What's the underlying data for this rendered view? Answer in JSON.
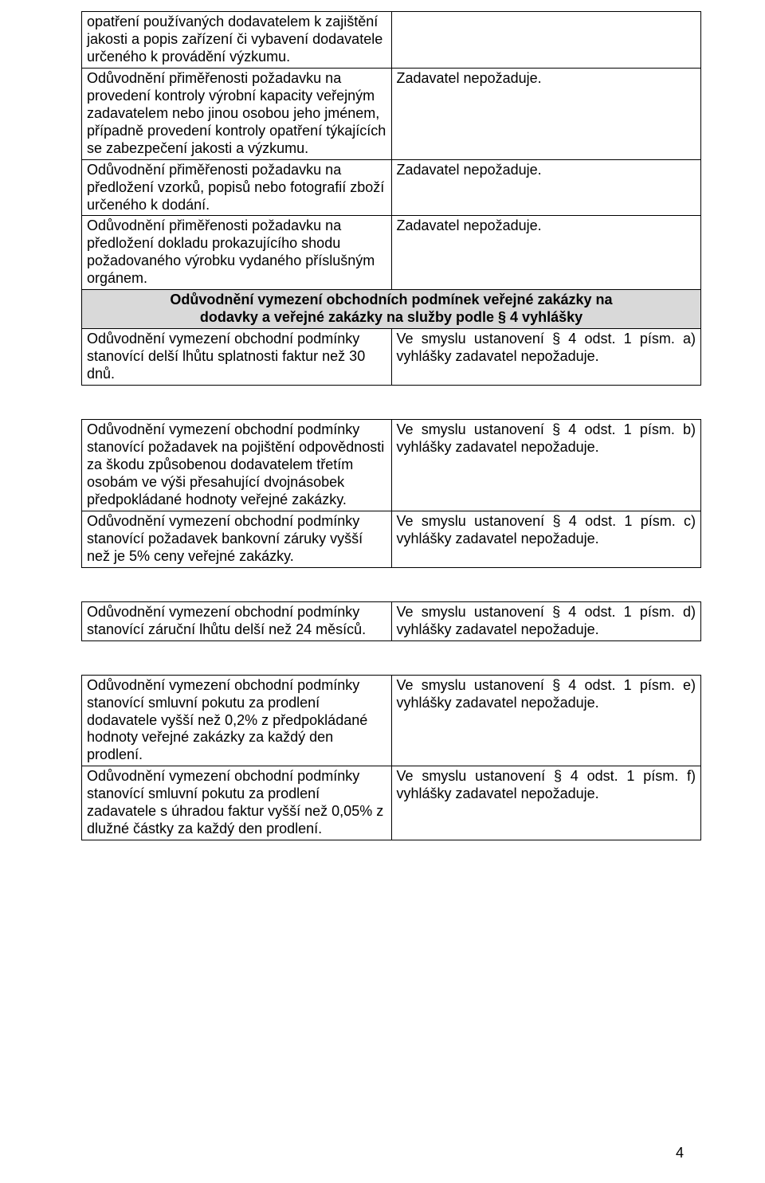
{
  "table1": {
    "rows": [
      {
        "left": "opatření používaných dodavatelem k zajištění jakosti a popis zařízení či vybavení dodavatele určeného k provádění výzkumu.",
        "right": ""
      },
      {
        "left": "Odůvodnění přiměřenosti požadavku na provedení kontroly výrobní kapacity veřejným zadavatelem nebo jinou osobou jeho jménem, případně provedení kontroly opatření týkajících se zabezpečení jakosti a výzkumu.",
        "right": "Zadavatel nepožaduje."
      },
      {
        "left": "Odůvodnění přiměřenosti požadavku na předložení vzorků, popisů nebo fotografií zboží určeného k dodání.",
        "right": "Zadavatel nepožaduje."
      },
      {
        "left": "Odůvodnění přiměřenosti požadavku na předložení dokladu prokazujícího shodu požadovaného výrobku vydaného příslušným orgánem.",
        "right": "Zadavatel nepožaduje."
      }
    ],
    "sectionHeader": "Odůvodnění vymezení obchodních podmínek veřejné zakázky na dodavky a veřejné zakázky na služby podle § 4 vyhlášky",
    "row5": {
      "left": "Odůvodnění vymezení obchodní podmínky stanovící delší lhůtu splatnosti faktur než 30 dnů.",
      "right": "Ve smyslu ustanovení § 4 odst. 1 písm. a) vyhlášky zadavatel nepožaduje."
    }
  },
  "table2": {
    "rows": [
      {
        "left": "Odůvodnění vymezení obchodní podmínky stanovící požadavek na pojištění odpovědnosti za škodu způsobenou dodavatelem třetím osobám ve výši přesahující dvojnásobek předpokládané hodnoty veřejné zakázky.",
        "right": "Ve smyslu ustanovení § 4 odst. 1 písm. b) vyhlášky zadavatel nepožaduje."
      },
      {
        "left": "Odůvodnění vymezení obchodní podmínky stanovící požadavek bankovní záruky vyšší než je 5% ceny veřejné zakázky.",
        "right": "Ve smyslu ustanovení § 4 odst. 1 písm. c) vyhlášky zadavatel nepožaduje."
      }
    ]
  },
  "table3": {
    "rows": [
      {
        "left": "Odůvodnění vymezení obchodní podmínky stanovící záruční lhůtu delší než 24 měsíců.",
        "right": "Ve smyslu ustanovení § 4 odst. 1 písm. d) vyhlášky zadavatel nepožaduje."
      }
    ]
  },
  "table4": {
    "rows": [
      {
        "left": "Odůvodnění vymezení obchodní podmínky stanovící smluvní pokutu za prodlení dodavatele vyšší než 0,2% z předpokládané hodnoty veřejné zakázky za každý den prodlení.",
        "right": "Ve smyslu ustanovení § 4 odst. 1 písm. e) vyhlášky zadavatel nepožaduje."
      },
      {
        "left": "Odůvodnění vymezení obchodní podmínky stanovící smluvní pokutu za prodlení zadavatele s úhradou faktur vyšší než 0,05% z dlužné částky za každý den prodlení.",
        "right": "Ve smyslu ustanovení § 4 odst. 1 písm. f) vyhlášky zadavatel nepožaduje."
      }
    ]
  },
  "pageNumber": "4"
}
